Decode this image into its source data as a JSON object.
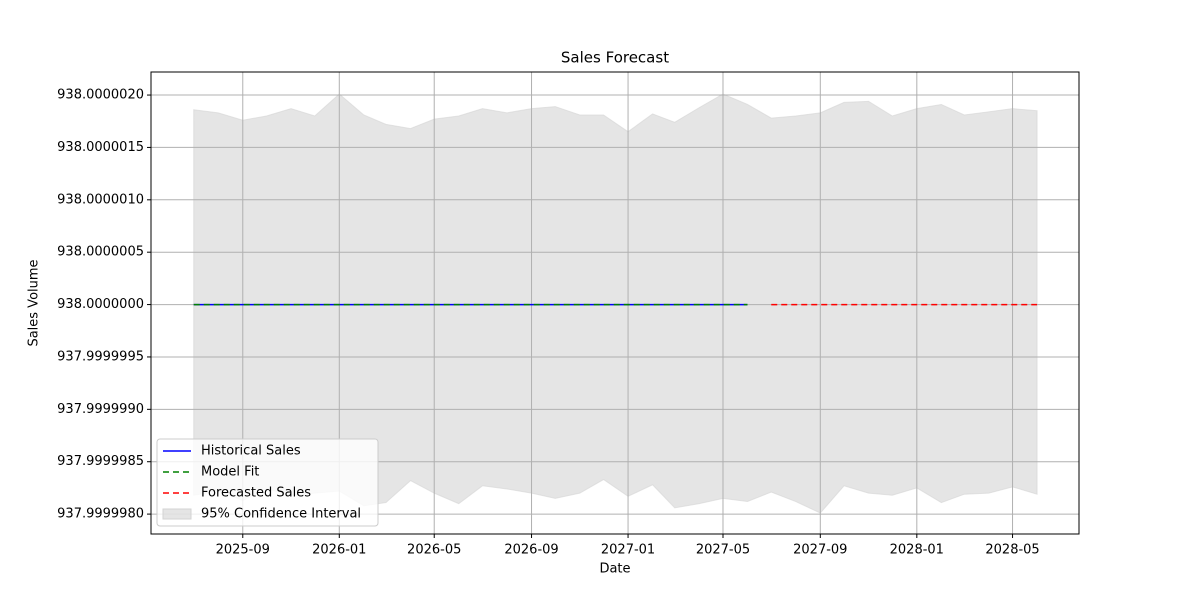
{
  "chart_data": {
    "type": "line",
    "title": "Sales Forecast",
    "x_label": "Date",
    "y_label": "Sales Volume",
    "xlim": [
      "2025-05-08",
      "2028-07-24"
    ],
    "xticks": [
      "2025-09",
      "2026-01",
      "2026-05",
      "2026-09",
      "2027-01",
      "2027-05",
      "2027-09",
      "2028-01",
      "2028-05"
    ],
    "ylim": [
      937.99999781,
      938.00000222
    ],
    "yticks": [
      {
        "value": 937.999998,
        "label": "937.9999980"
      },
      {
        "value": 937.9999985,
        "label": "937.9999985"
      },
      {
        "value": 937.999999,
        "label": "937.9999990"
      },
      {
        "value": 937.9999995,
        "label": "937.9999995"
      },
      {
        "value": 938,
        "label": "938.0000000"
      },
      {
        "value": 938.0000005,
        "label": "938.0000005"
      },
      {
        "value": 938.000001,
        "label": "938.0000010"
      },
      {
        "value": 938.0000015,
        "label": "938.0000015"
      },
      {
        "value": 938.000002,
        "label": "938.0000020"
      }
    ],
    "grid": true,
    "legend": "lower left",
    "series": [
      {
        "name": "Historical Sales",
        "color": "#0000ff",
        "dash": "solid",
        "x": [
          "2025-07",
          "2025-08",
          "2025-09",
          "2025-10",
          "2025-11",
          "2025-12",
          "2026-01",
          "2026-02",
          "2026-03",
          "2026-04",
          "2026-05",
          "2026-06",
          "2026-07",
          "2026-08",
          "2026-09",
          "2026-10",
          "2026-11",
          "2026-12",
          "2027-01",
          "2027-02",
          "2027-03",
          "2027-04",
          "2027-05",
          "2027-06"
        ],
        "values": [
          938,
          938,
          938,
          938,
          938,
          938,
          938,
          938,
          938,
          938,
          938,
          938,
          938,
          938,
          938,
          938,
          938,
          938,
          938,
          938,
          938,
          938,
          938,
          938
        ]
      },
      {
        "name": "Model Fit",
        "color": "#008000",
        "dash": "dashed",
        "x": [
          "2025-07",
          "2025-08",
          "2025-09",
          "2025-10",
          "2025-11",
          "2025-12",
          "2026-01",
          "2026-02",
          "2026-03",
          "2026-04",
          "2026-05",
          "2026-06",
          "2026-07",
          "2026-08",
          "2026-09",
          "2026-10",
          "2026-11",
          "2026-12",
          "2027-01",
          "2027-02",
          "2027-03",
          "2027-04",
          "2027-05",
          "2027-06"
        ],
        "values": [
          938,
          938,
          938,
          938,
          938,
          938,
          938,
          938,
          938,
          938,
          938,
          938,
          938,
          938,
          938,
          938,
          938,
          938,
          938,
          938,
          938,
          938,
          938,
          938
        ]
      },
      {
        "name": "Forecasted Sales",
        "color": "#ff0000",
        "dash": "dashed",
        "x": [
          "2027-07",
          "2027-08",
          "2027-09",
          "2027-10",
          "2027-11",
          "2027-12",
          "2028-01",
          "2028-02",
          "2028-03",
          "2028-04",
          "2028-05",
          "2028-06"
        ],
        "values": [
          938,
          938,
          938,
          938,
          938,
          938,
          938,
          938,
          938,
          938,
          938,
          938
        ]
      }
    ],
    "band": {
      "name": "95% Confidence Interval",
      "color": "#d3d3d3",
      "x": [
        "2025-07",
        "2025-08",
        "2025-09",
        "2025-10",
        "2025-11",
        "2025-12",
        "2026-01",
        "2026-02",
        "2026-03",
        "2026-04",
        "2026-05",
        "2026-06",
        "2026-07",
        "2026-08",
        "2026-09",
        "2026-10",
        "2026-11",
        "2026-12",
        "2027-01",
        "2027-02",
        "2027-03",
        "2027-04",
        "2027-05",
        "2027-06",
        "2027-07",
        "2027-08",
        "2027-09",
        "2027-10",
        "2027-11",
        "2027-12",
        "2028-01",
        "2028-02",
        "2028-03",
        "2028-04",
        "2028-05",
        "2028-06"
      ],
      "upper": [
        938.00000186,
        938.00000183,
        938.00000176,
        938.0000018,
        938.00000187,
        938.0000018,
        938.00000201,
        938.00000181,
        938.00000172,
        938.00000168,
        938.00000177,
        938.0000018,
        938.00000187,
        938.00000183,
        938.00000187,
        938.00000189,
        938.00000181,
        938.00000181,
        938.00000165,
        938.00000182,
        938.00000174,
        938.00000188,
        938.00000201,
        938.00000191,
        938.00000178,
        938.0000018,
        938.00000183,
        938.00000193,
        938.00000194,
        938.0000018,
        938.00000187,
        938.00000191,
        938.00000181,
        938.00000184,
        938.00000187,
        938.00000185
      ],
      "lower": [
        937.99999818,
        937.99999822,
        937.99999813,
        937.99999824,
        937.99999818,
        937.9999982,
        937.99999822,
        937.99999808,
        937.99999811,
        937.99999832,
        937.9999982,
        937.9999981,
        937.99999827,
        937.99999824,
        937.9999982,
        937.99999815,
        937.9999982,
        937.99999833,
        937.99999817,
        937.99999828,
        937.99999806,
        937.9999981,
        937.99999815,
        937.99999812,
        937.99999821,
        937.99999812,
        937.99999801,
        937.99999827,
        937.9999982,
        937.99999818,
        937.99999825,
        937.99999811,
        937.99999819,
        937.9999982,
        937.99999826,
        937.99999819
      ]
    }
  }
}
